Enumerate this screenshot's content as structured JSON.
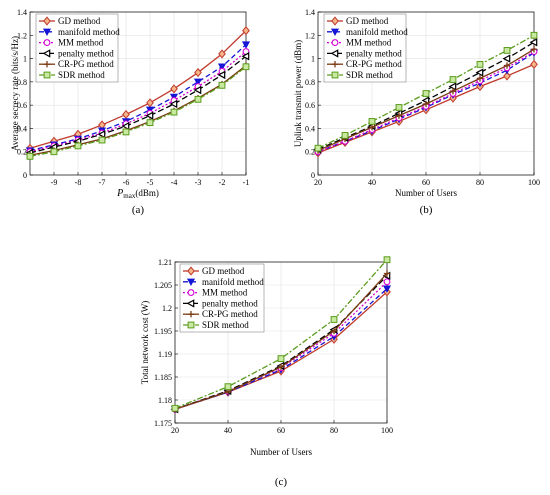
{
  "series_defs": [
    {
      "key": "gd",
      "name": "GD method",
      "color": "#c0392b",
      "marker": "diamond",
      "dash": "",
      "mfill": "#f5b58a"
    },
    {
      "key": "manifold",
      "name": "manifold method",
      "color": "#1515d6",
      "marker": "tri-down",
      "dash": "5,3",
      "mfill": "#1515d6"
    },
    {
      "key": "mm",
      "name": "MM method",
      "color": "#d400d4",
      "marker": "circle",
      "dash": "2,2",
      "mfill": "#ffffff"
    },
    {
      "key": "penalty",
      "name": "penalty method",
      "color": "#000000",
      "marker": "tri-left",
      "dash": "6,3",
      "mfill": "#ffffff"
    },
    {
      "key": "crpg",
      "name": "CR-PG method",
      "color": "#7a3a12",
      "marker": "plus",
      "dash": "",
      "mfill": "none"
    },
    {
      "key": "sdr",
      "name": "SDR method",
      "color": "#5a9c1c",
      "marker": "square",
      "dash": "6,2,2,2",
      "mfill": "#c9e8a0"
    }
  ],
  "chart_data": [
    {
      "id": "a",
      "type": "line",
      "caption": "(a)",
      "xlabel_main": "P",
      "xlabel_sub": "max",
      "xlabel_unit": "(dBm)",
      "ylabel": "Average secrecy rate (bits/s/Hz)",
      "xlim": [
        -10,
        -1
      ],
      "ylim": [
        0,
        1.4
      ],
      "xticks": [
        -9,
        -8,
        -7,
        -6,
        -5,
        -4,
        -3,
        -2,
        -1
      ],
      "yticks": [
        0,
        0.2,
        0.4,
        0.6,
        0.8,
        1,
        1.2,
        1.4
      ],
      "grid": true,
      "legend_position": "top-left",
      "x": [
        -10,
        -9,
        -8,
        -7,
        -6,
        -5,
        -4,
        -3,
        -2,
        -1
      ],
      "series": [
        {
          "name": "GD method",
          "values": [
            0.23,
            0.29,
            0.35,
            0.43,
            0.52,
            0.62,
            0.74,
            0.88,
            1.04,
            1.24
          ]
        },
        {
          "name": "manifold method",
          "values": [
            0.21,
            0.26,
            0.31,
            0.38,
            0.46,
            0.56,
            0.67,
            0.8,
            0.93,
            1.12
          ]
        },
        {
          "name": "MM method",
          "values": [
            0.2,
            0.25,
            0.3,
            0.36,
            0.44,
            0.53,
            0.64,
            0.76,
            0.89,
            1.06
          ]
        },
        {
          "name": "penalty method",
          "values": [
            0.19,
            0.24,
            0.29,
            0.35,
            0.42,
            0.51,
            0.61,
            0.73,
            0.86,
            1.02
          ]
        },
        {
          "name": "CR-PG method",
          "values": [
            0.17,
            0.21,
            0.26,
            0.31,
            0.38,
            0.46,
            0.55,
            0.66,
            0.78,
            0.94
          ]
        },
        {
          "name": "SDR method",
          "values": [
            0.16,
            0.2,
            0.25,
            0.3,
            0.37,
            0.45,
            0.54,
            0.65,
            0.77,
            0.93
          ]
        }
      ]
    },
    {
      "id": "b",
      "type": "line",
      "caption": "(b)",
      "xlabel": "Number of Users",
      "ylabel": "Uplink transmit power (dBm)",
      "xlim": [
        20,
        100
      ],
      "ylim": [
        0,
        1.4
      ],
      "xticks": [
        20,
        40,
        60,
        80,
        100
      ],
      "yticks": [
        0,
        0.2,
        0.4,
        0.6,
        0.8,
        1,
        1.2,
        1.4
      ],
      "grid": true,
      "legend_position": "top-left",
      "x": [
        20,
        30,
        40,
        50,
        60,
        70,
        80,
        90,
        100
      ],
      "series": [
        {
          "name": "GD method",
          "values": [
            0.19,
            0.28,
            0.37,
            0.46,
            0.56,
            0.66,
            0.76,
            0.85,
            0.95
          ]
        },
        {
          "name": "manifold method",
          "values": [
            0.2,
            0.29,
            0.38,
            0.48,
            0.58,
            0.69,
            0.79,
            0.9,
            1.05
          ]
        },
        {
          "name": "MM method",
          "values": [
            0.2,
            0.29,
            0.39,
            0.49,
            0.59,
            0.7,
            0.81,
            0.92,
            1.06
          ]
        },
        {
          "name": "penalty method",
          "values": [
            0.22,
            0.32,
            0.42,
            0.53,
            0.64,
            0.76,
            0.88,
            1.0,
            1.14
          ]
        },
        {
          "name": "CR-PG method",
          "values": [
            0.21,
            0.31,
            0.41,
            0.51,
            0.61,
            0.72,
            0.83,
            0.94,
            1.08
          ]
        },
        {
          "name": "SDR method",
          "values": [
            0.23,
            0.34,
            0.46,
            0.58,
            0.7,
            0.82,
            0.95,
            1.07,
            1.2
          ]
        }
      ]
    },
    {
      "id": "c",
      "type": "line",
      "caption": "(c)",
      "xlabel": "Number of Users",
      "ylabel": "Total network cost (W)",
      "xlim": [
        20,
        100
      ],
      "ylim": [
        1.175,
        1.21
      ],
      "xticks": [
        20,
        40,
        60,
        80,
        100
      ],
      "yticks": [
        1.175,
        1.18,
        1.185,
        1.19,
        1.195,
        1.2,
        1.205,
        1.21
      ],
      "ytick_labels": [
        "1.175",
        "1.18",
        "1.185",
        "1.19",
        "1.195",
        "1.2",
        "1.205",
        "1.21"
      ],
      "grid": true,
      "legend_position": "top-left",
      "x": [
        20,
        40,
        60,
        80,
        100
      ],
      "series": [
        {
          "name": "GD method",
          "values": [
            1.178,
            1.1817,
            1.1863,
            1.1932,
            1.2035
          ]
        },
        {
          "name": "manifold method",
          "values": [
            1.178,
            1.1817,
            1.1866,
            1.1938,
            1.2042
          ]
        },
        {
          "name": "MM method",
          "values": [
            1.178,
            1.1819,
            1.187,
            1.1945,
            1.2057
          ]
        },
        {
          "name": "penalty method",
          "values": [
            1.178,
            1.182,
            1.1874,
            1.1953,
            1.207
          ]
        },
        {
          "name": "CR-PG method",
          "values": [
            1.178,
            1.1818,
            1.1872,
            1.195,
            1.2075
          ]
        },
        {
          "name": "SDR method",
          "values": [
            1.1782,
            1.1829,
            1.189,
            1.1975,
            1.2105
          ]
        }
      ]
    }
  ]
}
